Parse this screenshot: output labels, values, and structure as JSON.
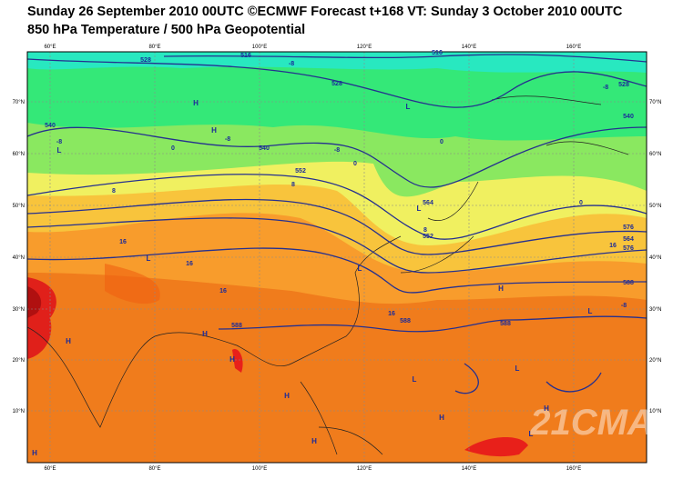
{
  "header": {
    "title_line1": "Sunday 26 September 2010 00UTC ©ECMWF Forecast t+168 VT: Sunday 3 October 2010 00UTC",
    "title_line2": "850 hPa Temperature / 500 hPa Geopotential"
  },
  "map": {
    "longitude_labels": [
      "60°E",
      "80°E",
      "100°E",
      "120°E",
      "140°E",
      "160°E"
    ],
    "latitude_labels": [
      "70°N",
      "60°N",
      "50°N",
      "40°N",
      "30°N",
      "20°N",
      "10°N"
    ],
    "contour_labels": [
      "516",
      "528",
      "528",
      "516",
      "528",
      "540",
      "540",
      "540",
      "552",
      "564",
      "576",
      "552",
      "564",
      "576",
      "588",
      "588",
      "588",
      "588",
      "-8",
      "-8",
      "-8",
      "-8",
      "-8",
      "-8",
      "0",
      "0",
      "0",
      "0",
      "8",
      "8",
      "8",
      "16",
      "16",
      "16",
      "16",
      "16"
    ],
    "pressure_markers": [
      "H",
      "H",
      "L",
      "L",
      "L",
      "L",
      "H",
      "L",
      "H",
      "H",
      "H",
      "L",
      "H",
      "L",
      "L",
      "H",
      "H",
      "H",
      "H",
      "L"
    ]
  },
  "watermark": "21CMA"
}
